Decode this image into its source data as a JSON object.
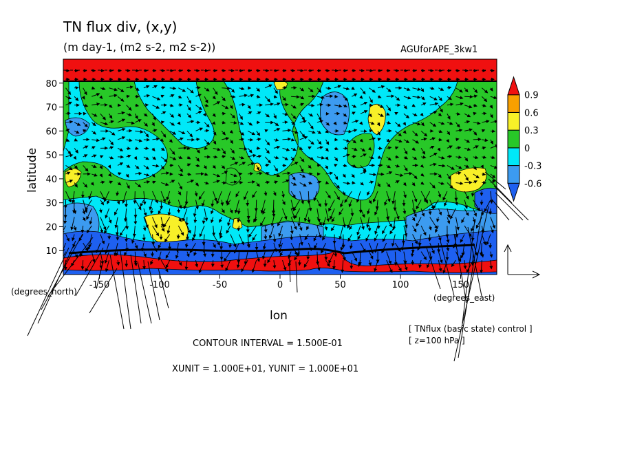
{
  "title": "TN flux div, (x,y)",
  "subtitle": "(m day-1, (m2 s-2, m2 s-2))",
  "run_name": "AGUforAPE_3kw1",
  "contour_interval": "CONTOUR INTERVAL = 1.500E-01",
  "units_line": "XUNIT = 1.000E+01, YUNIT = 1.000E+01",
  "annotation_1": "[ TNflux (basic state) control ]",
  "annotation_2": "[ z=100 hPa ]",
  "colors": {
    "lt_-0.6": "#1e60f0",
    "-0.6_-0.3": "#3c9bf0",
    "-0.3_0": "#00e8f8",
    "0_0.3": "#28c828",
    "0.3_0.6": "#f8f028",
    "0.6_0.9": "#f8a000",
    "gt_0.9": "#f01010"
  },
  "chart_data": {
    "type": "heatmap",
    "title": "TN flux div, (x,y)",
    "subtitle": "(m day-1, (m2 s-2, m2 s-2))",
    "xlabel": "lon",
    "ylabel": "latitude",
    "x_unit_label": "(degrees_east)",
    "y_unit_label": "(degrees_north)",
    "xlim": [
      -180,
      180
    ],
    "ylim": [
      0,
      90
    ],
    "x_ticks": [
      -150,
      -100,
      -50,
      0,
      50,
      100,
      150
    ],
    "x_tick_labels": [
      "-150",
      "-100",
      "-50",
      "0",
      "50",
      "100",
      "150"
    ],
    "y_ticks": [
      10,
      20,
      30,
      40,
      50,
      60,
      70,
      80
    ],
    "y_tick_labels": [
      "10",
      "20",
      "30",
      "40",
      "50",
      "60",
      "70",
      "80"
    ],
    "colorbar_levels": [
      -0.6,
      -0.3,
      0,
      0.3,
      0.6,
      0.9
    ],
    "colorbar_labels": [
      "-0.6",
      "-0.3",
      "0",
      "0.3",
      "0.6",
      "0.9"
    ],
    "contour_interval": 0.15,
    "vector_units": {
      "x": 10,
      "y": 10
    },
    "overlay": "wave activity flux vectors",
    "grid": false
  }
}
